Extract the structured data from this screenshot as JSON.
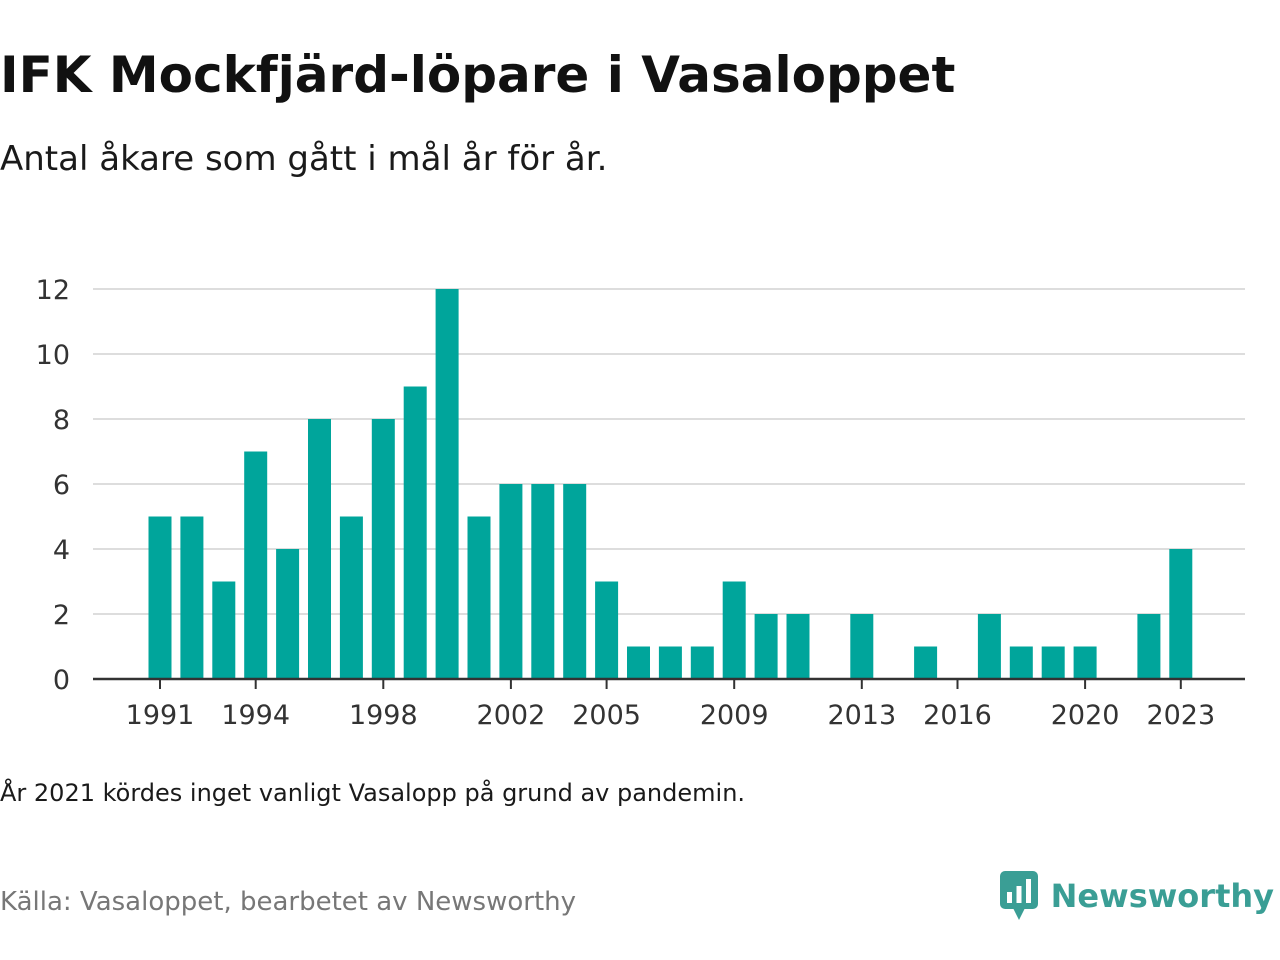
{
  "header": {
    "title": "IFK Mockfjärd-löpare i Vasaloppet",
    "subtitle": "Antal åkare som gått i mål år för år."
  },
  "footer": {
    "note": "År 2021 kördes inget vanligt Vasalopp på grund av pandemin.",
    "source": "Källa: Vasaloppet, bearbetet av Newsworthy",
    "brand": "Newsworthy"
  },
  "colors": {
    "bar": "#00a59b",
    "brand": "#3a9e95",
    "grid": "#dddddd",
    "axis": "#333333"
  },
  "icons": {
    "brand_logo": "bar-chart-speech-bubble-icon"
  },
  "chart_data": {
    "type": "bar",
    "x": [
      1991,
      1992,
      1993,
      1994,
      1995,
      1996,
      1997,
      1998,
      1999,
      2000,
      2001,
      2002,
      2003,
      2004,
      2005,
      2006,
      2007,
      2008,
      2009,
      2010,
      2011,
      2012,
      2013,
      2014,
      2015,
      2016,
      2017,
      2018,
      2019,
      2020,
      2021,
      2022,
      2023
    ],
    "values": [
      5,
      5,
      3,
      7,
      4,
      8,
      5,
      8,
      9,
      12,
      5,
      6,
      6,
      6,
      3,
      1,
      1,
      1,
      3,
      2,
      2,
      0,
      2,
      0,
      1,
      0,
      2,
      1,
      1,
      1,
      0,
      2,
      4
    ],
    "x_tick_labels": [
      "1991",
      "1994",
      "1998",
      "2002",
      "2005",
      "2009",
      "2013",
      "2016",
      "2020",
      "2023"
    ],
    "y_ticks": [
      0,
      2,
      4,
      6,
      8,
      10,
      12
    ],
    "ylim": [
      0,
      12
    ],
    "grid": true,
    "legend": false
  }
}
